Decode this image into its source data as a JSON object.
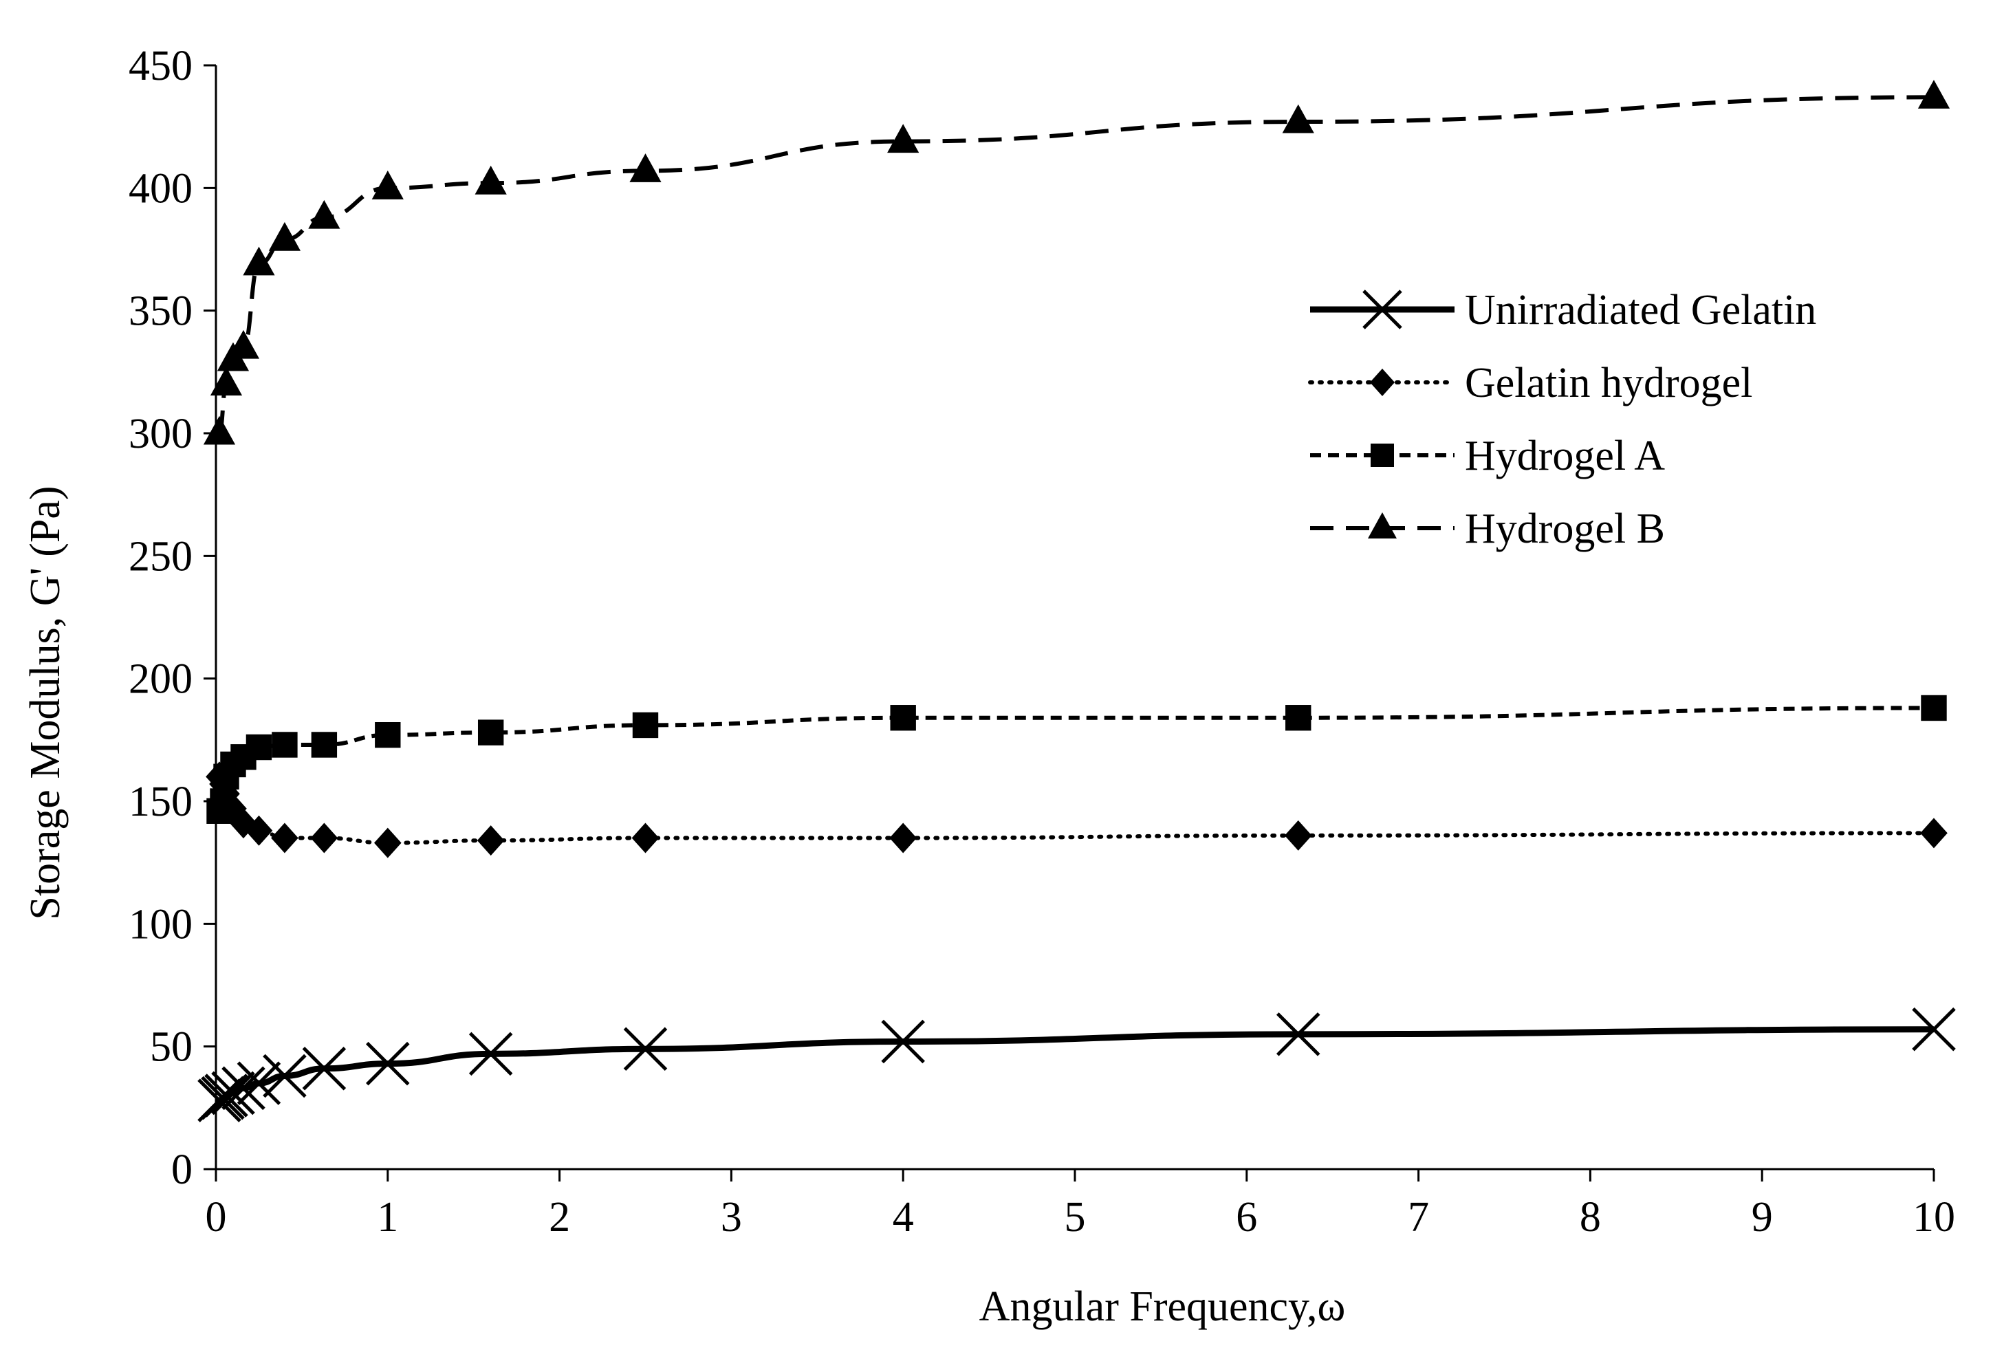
{
  "chart_data": {
    "type": "line",
    "title": "",
    "xlabel": "Angular Frequency,ω",
    "ylabel": "Storage Modulus, G' (Pa)",
    "xlim": [
      0,
      10
    ],
    "ylim": [
      0,
      450
    ],
    "xticks": [
      0,
      1,
      2,
      3,
      4,
      5,
      6,
      7,
      8,
      9,
      10
    ],
    "yticks": [
      0,
      50,
      100,
      150,
      200,
      250,
      300,
      350,
      400,
      450
    ],
    "grid": false,
    "legend_position": "right",
    "series": [
      {
        "name": "Unirradiated Gelatin",
        "line_style": "solid",
        "marker": "x",
        "color": "#000000",
        "x": [
          0.02,
          0.04,
          0.06,
          0.1,
          0.16,
          0.25,
          0.4,
          0.63,
          1.0,
          1.6,
          2.5,
          4.0,
          6.3,
          10.0
        ],
        "y": [
          28,
          29,
          30,
          31,
          33,
          35,
          38,
          41,
          43,
          47,
          49,
          52,
          55,
          57
        ]
      },
      {
        "name": "Gelatin hydrogel",
        "line_style": "dotted",
        "marker": "diamond",
        "color": "#000000",
        "x": [
          0.02,
          0.04,
          0.06,
          0.1,
          0.16,
          0.25,
          0.4,
          0.63,
          1.0,
          1.6,
          2.5,
          4.0,
          6.3,
          10.0
        ],
        "y": [
          160,
          157,
          153,
          147,
          141,
          138,
          135,
          135,
          133,
          134,
          135,
          135,
          136,
          137
        ]
      },
      {
        "name": "Hydrogel A",
        "line_style": "dashed",
        "marker": "square",
        "color": "#000000",
        "x": [
          0.02,
          0.04,
          0.06,
          0.1,
          0.16,
          0.25,
          0.4,
          0.63,
          1.0,
          1.6,
          2.5,
          4.0,
          6.3,
          10.0
        ],
        "y": [
          146,
          150,
          160,
          165,
          168,
          172,
          173,
          173,
          177,
          178,
          181,
          184,
          184,
          188
        ]
      },
      {
        "name": "Hydrogel B",
        "line_style": "longdash",
        "marker": "triangle",
        "color": "#000000",
        "x": [
          0.02,
          0.06,
          0.1,
          0.16,
          0.25,
          0.4,
          0.63,
          1.0,
          1.6,
          2.5,
          4.0,
          6.3,
          10.0
        ],
        "y": [
          300,
          320,
          330,
          335,
          369,
          379,
          388,
          400,
          402,
          407,
          419,
          427,
          437
        ]
      }
    ]
  }
}
